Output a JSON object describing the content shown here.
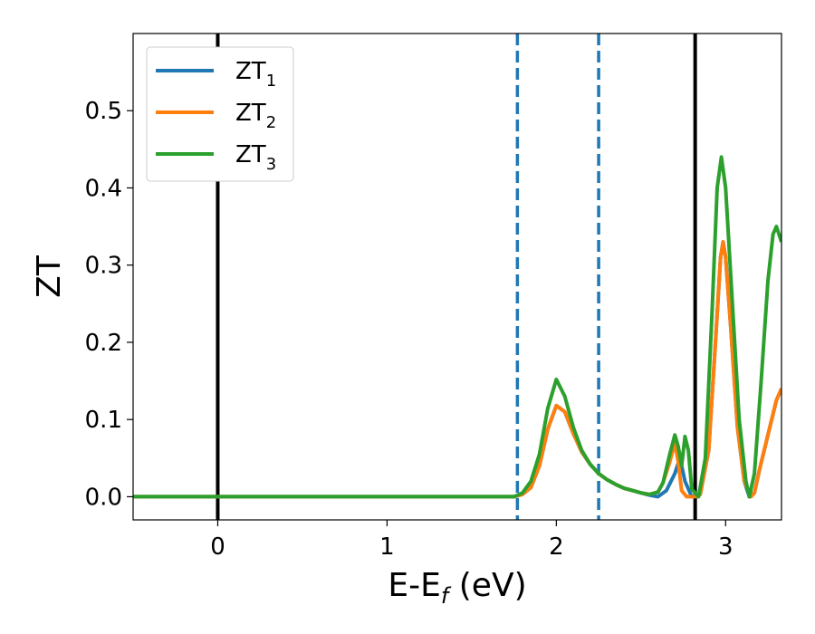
{
  "chart_data": {
    "type": "line",
    "title": "",
    "xlabel": {
      "main": "E-E",
      "sub": "f",
      "unit": " (eV)"
    },
    "ylabel": "ZT",
    "xlim": [
      -0.5,
      3.33
    ],
    "ylim": [
      -0.03,
      0.6
    ],
    "grid": false,
    "legend_position": "top-left",
    "xticks": [
      {
        "value": 0,
        "label": "0"
      },
      {
        "value": 1,
        "label": "1"
      },
      {
        "value": 2,
        "label": "2"
      },
      {
        "value": 3,
        "label": "3"
      }
    ],
    "yticks": [
      {
        "value": 0.0,
        "label": "0.0"
      },
      {
        "value": 0.1,
        "label": "0.1"
      },
      {
        "value": 0.2,
        "label": "0.2"
      },
      {
        "value": 0.3,
        "label": "0.3"
      },
      {
        "value": 0.4,
        "label": "0.4"
      },
      {
        "value": 0.5,
        "label": "0.5"
      }
    ],
    "reference_lines": [
      {
        "x": 0.0,
        "style": "solid",
        "color": "#000000"
      },
      {
        "x": 2.82,
        "style": "solid",
        "color": "#000000"
      },
      {
        "x": 1.77,
        "style": "dashed",
        "color": "#1f77b4"
      },
      {
        "x": 2.25,
        "style": "dashed",
        "color": "#1f77b4"
      }
    ],
    "series": [
      {
        "name": "ZT",
        "sub": "1",
        "color": "#1f77b4",
        "points": [
          [
            -0.5,
            0
          ],
          [
            1.75,
            0
          ],
          [
            1.8,
            0.003
          ],
          [
            1.85,
            0.012
          ],
          [
            1.9,
            0.04
          ],
          [
            1.95,
            0.088
          ],
          [
            2.0,
            0.118
          ],
          [
            2.05,
            0.11
          ],
          [
            2.1,
            0.082
          ],
          [
            2.15,
            0.058
          ],
          [
            2.2,
            0.042
          ],
          [
            2.25,
            0.03
          ],
          [
            2.3,
            0.022
          ],
          [
            2.35,
            0.016
          ],
          [
            2.4,
            0.011
          ],
          [
            2.45,
            0.008
          ],
          [
            2.5,
            0.005
          ],
          [
            2.55,
            0.002
          ],
          [
            2.6,
            0.0
          ],
          [
            2.65,
            0.008
          ],
          [
            2.7,
            0.03
          ],
          [
            2.73,
            0.05
          ],
          [
            2.76,
            0.02
          ],
          [
            2.8,
            0.0
          ],
          [
            2.85,
            0.003
          ],
          [
            2.9,
            0.06
          ],
          [
            2.94,
            0.2
          ],
          [
            2.97,
            0.31
          ],
          [
            2.985,
            0.33
          ],
          [
            3.0,
            0.31
          ],
          [
            3.03,
            0.22
          ],
          [
            3.07,
            0.09
          ],
          [
            3.11,
            0.02
          ],
          [
            3.14,
            0.0
          ],
          [
            3.17,
            0.005
          ],
          [
            3.2,
            0.035
          ],
          [
            3.25,
            0.08
          ],
          [
            3.3,
            0.125
          ],
          [
            3.33,
            0.14
          ]
        ]
      },
      {
        "name": "ZT",
        "sub": "2",
        "color": "#ff7f0e",
        "points": [
          [
            -0.5,
            0
          ],
          [
            1.75,
            0
          ],
          [
            1.8,
            0.003
          ],
          [
            1.85,
            0.012
          ],
          [
            1.9,
            0.04
          ],
          [
            1.95,
            0.088
          ],
          [
            2.0,
            0.118
          ],
          [
            2.05,
            0.11
          ],
          [
            2.1,
            0.082
          ],
          [
            2.15,
            0.058
          ],
          [
            2.2,
            0.042
          ],
          [
            2.25,
            0.03
          ],
          [
            2.3,
            0.022
          ],
          [
            2.35,
            0.016
          ],
          [
            2.4,
            0.011
          ],
          [
            2.45,
            0.008
          ],
          [
            2.5,
            0.005
          ],
          [
            2.55,
            0.003
          ],
          [
            2.6,
            0.006
          ],
          [
            2.63,
            0.018
          ],
          [
            2.67,
            0.045
          ],
          [
            2.7,
            0.07
          ],
          [
            2.72,
            0.045
          ],
          [
            2.74,
            0.008
          ],
          [
            2.77,
            0.0
          ],
          [
            2.82,
            0.0
          ],
          [
            2.85,
            0.003
          ],
          [
            2.9,
            0.06
          ],
          [
            2.94,
            0.2
          ],
          [
            2.97,
            0.31
          ],
          [
            2.985,
            0.33
          ],
          [
            3.0,
            0.31
          ],
          [
            3.03,
            0.22
          ],
          [
            3.07,
            0.09
          ],
          [
            3.11,
            0.02
          ],
          [
            3.15,
            0.0
          ],
          [
            3.17,
            0.005
          ],
          [
            3.2,
            0.035
          ],
          [
            3.25,
            0.08
          ],
          [
            3.3,
            0.125
          ],
          [
            3.33,
            0.14
          ]
        ]
      },
      {
        "name": "ZT",
        "sub": "3",
        "color": "#2ca02c",
        "points": [
          [
            -0.5,
            0
          ],
          [
            1.75,
            0
          ],
          [
            1.8,
            0.005
          ],
          [
            1.85,
            0.02
          ],
          [
            1.9,
            0.055
          ],
          [
            1.95,
            0.115
          ],
          [
            2.0,
            0.152
          ],
          [
            2.05,
            0.13
          ],
          [
            2.1,
            0.09
          ],
          [
            2.15,
            0.06
          ],
          [
            2.2,
            0.042
          ],
          [
            2.25,
            0.03
          ],
          [
            2.3,
            0.022
          ],
          [
            2.35,
            0.016
          ],
          [
            2.4,
            0.011
          ],
          [
            2.45,
            0.008
          ],
          [
            2.5,
            0.005
          ],
          [
            2.55,
            0.003
          ],
          [
            2.6,
            0.006
          ],
          [
            2.63,
            0.018
          ],
          [
            2.67,
            0.055
          ],
          [
            2.7,
            0.08
          ],
          [
            2.72,
            0.065
          ],
          [
            2.74,
            0.04
          ],
          [
            2.76,
            0.078
          ],
          [
            2.78,
            0.06
          ],
          [
            2.8,
            0.01
          ],
          [
            2.84,
            0.0
          ],
          [
            2.88,
            0.05
          ],
          [
            2.92,
            0.24
          ],
          [
            2.95,
            0.4
          ],
          [
            2.975,
            0.44
          ],
          [
            3.0,
            0.4
          ],
          [
            3.04,
            0.25
          ],
          [
            3.08,
            0.1
          ],
          [
            3.12,
            0.02
          ],
          [
            3.14,
            0.0
          ],
          [
            3.17,
            0.03
          ],
          [
            3.21,
            0.15
          ],
          [
            3.25,
            0.28
          ],
          [
            3.28,
            0.34
          ],
          [
            3.3,
            0.35
          ],
          [
            3.33,
            0.33
          ]
        ]
      }
    ]
  }
}
